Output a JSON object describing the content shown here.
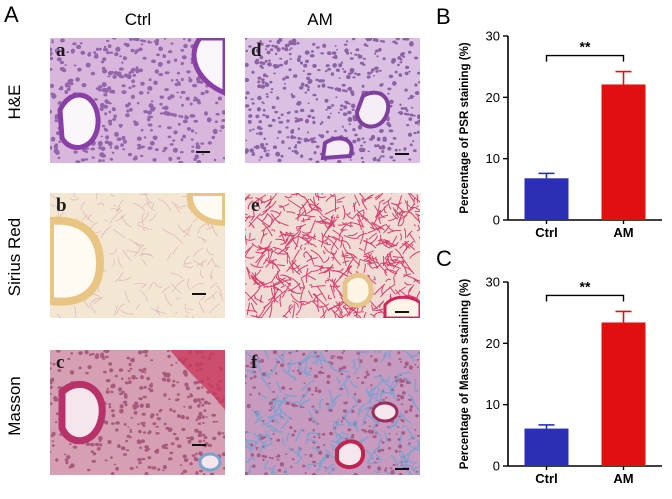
{
  "figure": {
    "panel_a_letter": "A",
    "panel_b_letter": "B",
    "panel_c_letter": "C",
    "col_headers": [
      "Ctrl",
      "AM"
    ],
    "row_labels": [
      "H&E",
      "Sirius Red",
      "Masson"
    ],
    "tile_letters": [
      "a",
      "d",
      "b",
      "e",
      "c",
      "f"
    ],
    "tile_colors": {
      "he_base": "#d9b7dd",
      "he_cell": "#7c4b9c",
      "sr_ctrl_base": "#f3e7d3",
      "sr_am_base": "#f0dcd5",
      "sr_fiber": "#d1245c",
      "masson_base": "#d69fb4",
      "masson_cell": "#8a2d5a",
      "masson_blue": "#7aa3d1"
    }
  },
  "chart_data": [
    {
      "type": "bar",
      "categories": [
        "Ctrl",
        "AM"
      ],
      "values": [
        6.8,
        22.1
      ],
      "errors": [
        0.8,
        2.1
      ],
      "colors": [
        "#2a2fb6",
        "#e01010"
      ],
      "ylabel": "Percentage of PSR staining  (%)",
      "ylim": [
        0,
        30
      ],
      "yticks": [
        0,
        10,
        20,
        30
      ],
      "significance": "**"
    },
    {
      "type": "bar",
      "categories": [
        "Ctrl",
        "AM"
      ],
      "values": [
        6.1,
        23.4
      ],
      "errors": [
        0.6,
        1.8
      ],
      "colors": [
        "#2a2fb6",
        "#e01010"
      ],
      "ylabel": "Percentage of Masson staining  (%)",
      "ylim": [
        0,
        30
      ],
      "yticks": [
        0,
        10,
        20,
        30
      ],
      "significance": "**"
    }
  ]
}
